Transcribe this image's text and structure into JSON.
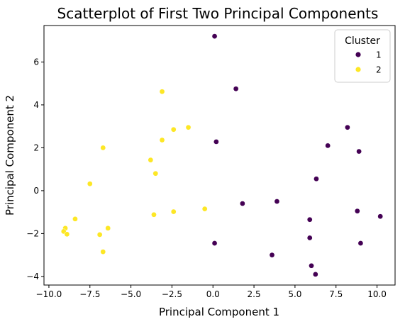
{
  "chart_data": {
    "type": "scatter",
    "title": "Scatterplot of First Two Principal Components",
    "xlabel": "Principal Component 1",
    "ylabel": "Principal Component 2",
    "xlim": [
      -10.3,
      11.1
    ],
    "ylim": [
      -4.4,
      7.7
    ],
    "xticks": [
      -10,
      -7.5,
      -5,
      -2.5,
      0,
      2.5,
      5,
      7.5,
      10
    ],
    "xtick_labels": [
      "−10.0",
      "−7.5",
      "−5.0",
      "−2.5",
      "0.0",
      "2.5",
      "5.0",
      "7.5",
      "10.0"
    ],
    "yticks": [
      -4,
      -2,
      0,
      2,
      4,
      6
    ],
    "ytick_labels": [
      "−4",
      "−2",
      "0",
      "2",
      "4",
      "6"
    ],
    "grid": false,
    "legend": {
      "title": "Cluster",
      "placement": "top-right"
    },
    "series": [
      {
        "name": "1",
        "color": "#440154",
        "points": [
          [
            0.1,
            7.2
          ],
          [
            1.4,
            4.75
          ],
          [
            0.2,
            2.28
          ],
          [
            8.2,
            2.95
          ],
          [
            7.0,
            2.1
          ],
          [
            8.9,
            1.83
          ],
          [
            6.3,
            0.55
          ],
          [
            1.8,
            -0.6
          ],
          [
            3.9,
            -0.5
          ],
          [
            8.8,
            -0.95
          ],
          [
            10.2,
            -1.2
          ],
          [
            5.9,
            -1.35
          ],
          [
            0.1,
            -2.45
          ],
          [
            5.9,
            -2.2
          ],
          [
            9.0,
            -2.45
          ],
          [
            3.6,
            -3.0
          ],
          [
            6.0,
            -3.5
          ],
          [
            6.25,
            -3.9
          ]
        ]
      },
      {
        "name": "2",
        "color": "#fde725",
        "points": [
          [
            -3.1,
            4.62
          ],
          [
            -1.5,
            2.95
          ],
          [
            -2.4,
            2.85
          ],
          [
            -3.1,
            2.36
          ],
          [
            -6.7,
            2.0
          ],
          [
            -3.8,
            1.43
          ],
          [
            -3.5,
            0.8
          ],
          [
            -7.5,
            0.32
          ],
          [
            -3.6,
            -1.12
          ],
          [
            -2.4,
            -0.98
          ],
          [
            -0.5,
            -0.85
          ],
          [
            -8.4,
            -1.32
          ],
          [
            -9.0,
            -1.75
          ],
          [
            -9.1,
            -1.9
          ],
          [
            -8.9,
            -2.03
          ],
          [
            -6.4,
            -1.75
          ],
          [
            -6.9,
            -2.05
          ],
          [
            -6.7,
            -2.85
          ]
        ]
      }
    ]
  }
}
